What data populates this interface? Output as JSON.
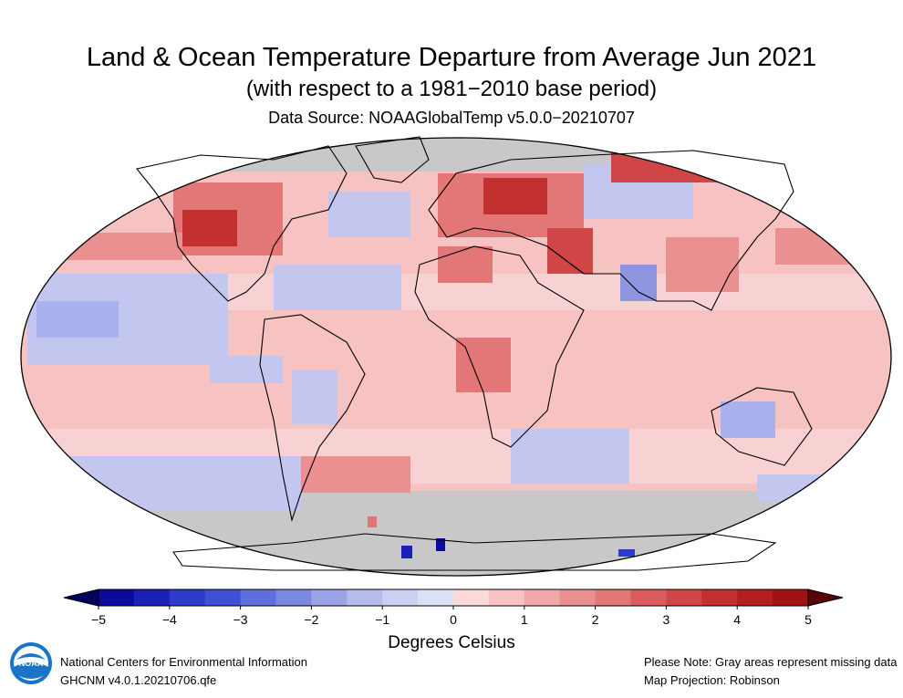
{
  "header": {
    "title": "Land & Ocean Temperature Departure from Average Jun 2021",
    "subtitle": "(with respect to a 1981−2010 base period)",
    "source": "Data Source: NOAAGlobalTemp v5.0.0−20210707"
  },
  "colorbar": {
    "ticks": [
      "−5",
      "−4",
      "−3",
      "−2",
      "−1",
      "0",
      "1",
      "2",
      "3",
      "4",
      "5"
    ],
    "label": "Degrees Celsius",
    "bins": [
      "#0a0a9c",
      "#1c20b8",
      "#2e3bc8",
      "#4050d4",
      "#5e6edc",
      "#7b88e0",
      "#9aa3e6",
      "#b6bcec",
      "#cbcff2",
      "#dcdff6",
      "#fbd9d9",
      "#f6c2c2",
      "#f0a8a8",
      "#ea9090",
      "#e37676",
      "#da5c5c",
      "#d04545",
      "#c33030",
      "#b41e1e",
      "#a31212"
    ],
    "over_color": "#5a0505",
    "under_color": "#03035a"
  },
  "map": {
    "projection": "Robinson",
    "missing_color": "#c8c8c8",
    "ocean_base_color": "#f6c2c2"
  },
  "footer": {
    "left_line1": "National Centers for Environmental Information",
    "left_line2": "GHCNM v4.0.1.20210706.qfe",
    "right_line1": "Please Note: Gray areas represent missing data",
    "right_line2": "Map Projection: Robinson"
  },
  "logo": {
    "text": "NOAA"
  }
}
